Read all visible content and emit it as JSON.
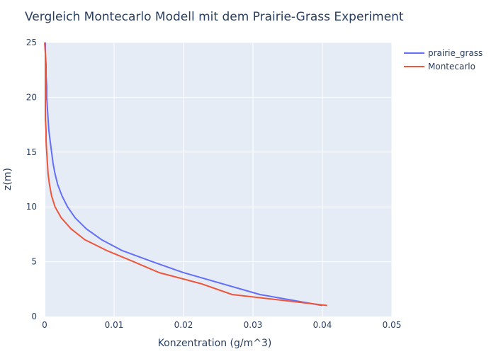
{
  "chart_data": {
    "type": "line",
    "title": "Vergleich Montecarlo Modell mit dem Prairie-Grass Experiment",
    "xlabel": "Konzentration (g/m^3)",
    "ylabel": "z(m)",
    "xlim": [
      0,
      0.05
    ],
    "ylim": [
      0,
      25
    ],
    "xticks": [
      0,
      0.01,
      0.02,
      0.03,
      0.04,
      0.05
    ],
    "xtick_labels": [
      "0",
      "0.01",
      "0.02",
      "0.03",
      "0.04",
      "0.05"
    ],
    "yticks": [
      0,
      5,
      10,
      15,
      20,
      25
    ],
    "ytick_labels": [
      "0",
      "5",
      "10",
      "15",
      "20",
      "25"
    ],
    "grid": true,
    "legend_position": "top-right",
    "series": [
      {
        "name": "prairie_grass",
        "color": "#636efa",
        "x": [
          0.04,
          0.031,
          0.02,
          0.0155,
          0.0112,
          0.0082,
          0.006,
          0.0044,
          0.0033,
          0.0025,
          0.0019,
          0.0015,
          0.0012,
          0.001,
          0.0008,
          0.0006,
          0.0005,
          0.0004,
          0.0003,
          0.0003,
          0.0002,
          0.0002,
          0.0001,
          0.0001,
          0.0001
        ],
        "y": [
          1,
          2,
          4,
          5,
          6,
          7,
          8,
          9,
          10,
          11,
          12,
          13,
          14,
          15,
          16,
          17,
          18,
          19,
          20,
          21,
          22,
          23,
          24,
          25,
          25
        ]
      },
      {
        "name": " Montecarlo",
        "color": "#ef553b",
        "x": [
          0.0407,
          0.027,
          0.0225,
          0.0165,
          0.0128,
          0.009,
          0.0058,
          0.0038,
          0.0024,
          0.0015,
          0.001,
          0.0007,
          0.0005,
          0.0004,
          0.0003,
          0.0002,
          0.0002,
          0.0001,
          0.0001,
          0.0001,
          0.0001,
          0.0
        ],
        "y": [
          1,
          2,
          3,
          4,
          5,
          6,
          7,
          8,
          9,
          10,
          11,
          12,
          13,
          14,
          15,
          16,
          17,
          18,
          20,
          22,
          24,
          25
        ]
      }
    ]
  }
}
